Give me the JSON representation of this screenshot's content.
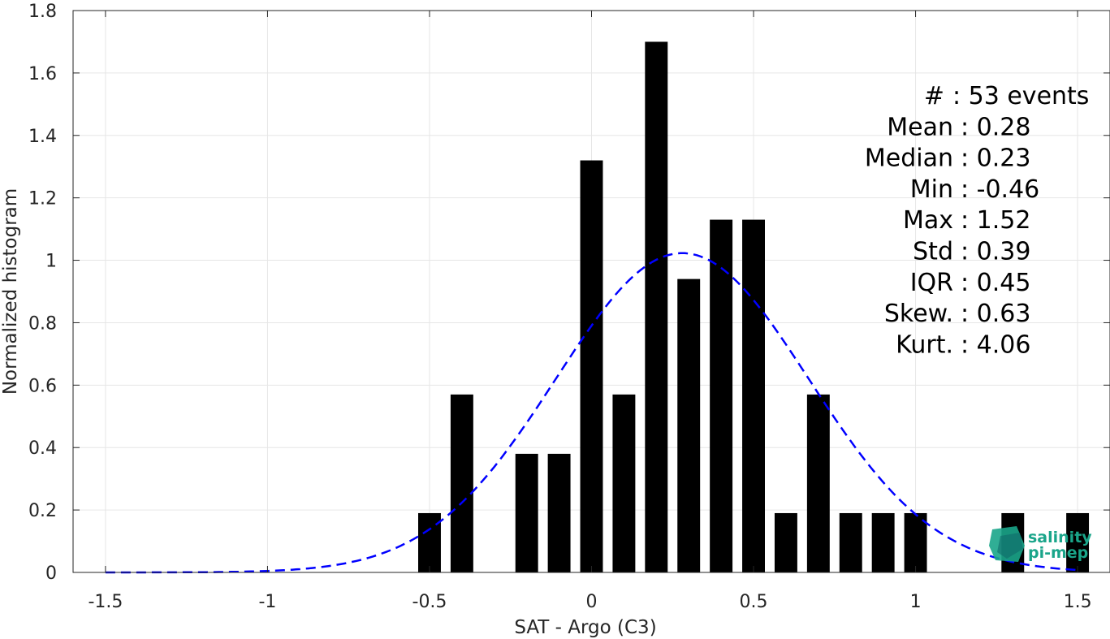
{
  "chart_data": {
    "type": "bar",
    "xlabel": "SAT - Argo (C3)",
    "ylabel": "Normalized histogram",
    "xlim": [
      -1.6,
      1.6
    ],
    "ylim": [
      0,
      1.8
    ],
    "xticks": [
      -1.5,
      -1,
      -0.5,
      0,
      0.5,
      1,
      1.5
    ],
    "xtick_labels": [
      "-1.5",
      "-1",
      "-0.5",
      "0",
      "0.5",
      "1",
      "1.5"
    ],
    "yticks": [
      0,
      0.2,
      0.4,
      0.6,
      0.8,
      1,
      1.2,
      1.4,
      1.6,
      1.8
    ],
    "ytick_labels": [
      "0",
      "0.2",
      "0.4",
      "0.6",
      "0.8",
      "1",
      "1.2",
      "1.4",
      "1.6",
      "1.8"
    ],
    "grid": true,
    "bar_width": 0.07,
    "bar_color": "#000000",
    "bins": [
      {
        "x": -0.5,
        "value": 0.19
      },
      {
        "x": -0.4,
        "value": 0.57
      },
      {
        "x": -0.2,
        "value": 0.38
      },
      {
        "x": -0.1,
        "value": 0.38
      },
      {
        "x": 0.0,
        "value": 1.32
      },
      {
        "x": 0.1,
        "value": 0.57
      },
      {
        "x": 0.2,
        "value": 1.7
      },
      {
        "x": 0.3,
        "value": 0.94
      },
      {
        "x": 0.4,
        "value": 1.13
      },
      {
        "x": 0.5,
        "value": 1.13
      },
      {
        "x": 0.6,
        "value": 0.19
      },
      {
        "x": 0.7,
        "value": 0.57
      },
      {
        "x": 0.8,
        "value": 0.19
      },
      {
        "x": 0.9,
        "value": 0.19
      },
      {
        "x": 1.0,
        "value": 0.19
      },
      {
        "x": 1.3,
        "value": 0.19
      },
      {
        "x": 1.5,
        "value": 0.19
      }
    ],
    "fit_curve": {
      "style": "dashed",
      "color": "#0000ff",
      "mean": 0.28,
      "std": 0.39,
      "x_range": [
        -1.5,
        1.5
      ]
    },
    "annotation_lines": [
      "#  : 53 events",
      "Mean : 0.28",
      "Median : 0.23",
      "Min : -0.46",
      "Max : 1.52",
      "Std : 0.39",
      "IQR : 0.45",
      "Skew. : 0.63",
      "Kurt. : 4.06"
    ]
  },
  "logo": {
    "line1": "salinity",
    "line2": "pi-mep",
    "color_primary": "#1aa58a",
    "color_secondary": "#0f6b6b"
  }
}
